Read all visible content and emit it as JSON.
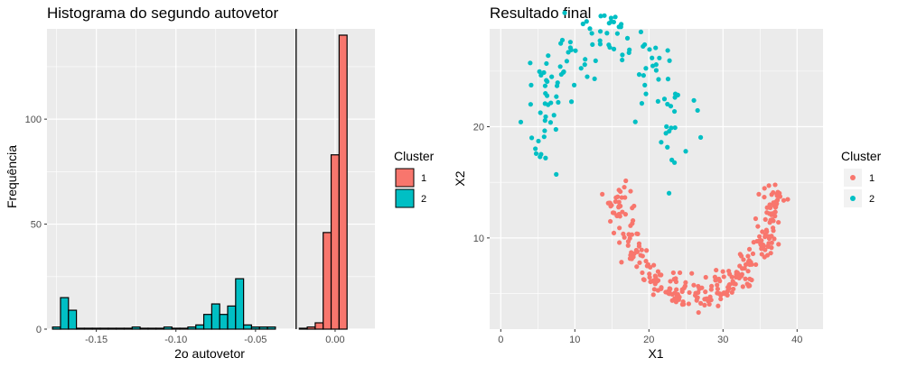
{
  "chart_data": [
    {
      "type": "bar",
      "subtype": "histogram",
      "title": "Histograma do segundo autovetor",
      "xlabel": "2o autovetor",
      "ylabel": "Frequência",
      "xlim": [
        -0.181,
        0.025
      ],
      "ylim": [
        0,
        143
      ],
      "x_ticks": [
        {
          "value": -0.15,
          "label": "-0.15"
        },
        {
          "value": -0.1,
          "label": "-0.10"
        },
        {
          "value": -0.05,
          "label": "-0.05"
        },
        {
          "value": 0.0,
          "label": "0.00"
        }
      ],
      "y_ticks": [
        {
          "value": 0,
          "label": "0"
        },
        {
          "value": 50,
          "label": "50"
        },
        {
          "value": 100,
          "label": "100"
        }
      ],
      "bin_width": 0.005,
      "vline": -0.0245,
      "grid": true,
      "legend": {
        "title": "Cluster",
        "position": "right"
      },
      "series": [
        {
          "name": "1",
          "color": "#F8766D",
          "bins": [
            {
              "x0": -0.0225,
              "x1": -0.0175,
              "count": 0
            },
            {
              "x0": -0.0175,
              "x1": -0.0125,
              "count": 1
            },
            {
              "x0": -0.0125,
              "x1": -0.0075,
              "count": 3
            },
            {
              "x0": -0.0075,
              "x1": -0.0025,
              "count": 46
            },
            {
              "x0": -0.0025,
              "x1": 0.0025,
              "count": 83
            },
            {
              "x0": 0.0025,
              "x1": 0.0075,
              "count": 140
            }
          ]
        },
        {
          "name": "2",
          "color": "#00BFC4",
          "bins": [
            {
              "x0": -0.1775,
              "x1": -0.1725,
              "count": 1
            },
            {
              "x0": -0.1725,
              "x1": -0.1675,
              "count": 15
            },
            {
              "x0": -0.1675,
              "x1": -0.1625,
              "count": 9
            },
            {
              "x0": -0.1625,
              "x1": -0.1575,
              "count": 0
            },
            {
              "x0": -0.1575,
              "x1": -0.1525,
              "count": 0
            },
            {
              "x0": -0.1525,
              "x1": -0.1475,
              "count": 0
            },
            {
              "x0": -0.1475,
              "x1": -0.1425,
              "count": 0
            },
            {
              "x0": -0.1425,
              "x1": -0.1375,
              "count": 0
            },
            {
              "x0": -0.1375,
              "x1": -0.1325,
              "count": 0
            },
            {
              "x0": -0.1325,
              "x1": -0.1275,
              "count": 0
            },
            {
              "x0": -0.1275,
              "x1": -0.1225,
              "count": 1
            },
            {
              "x0": -0.1225,
              "x1": -0.1175,
              "count": 0
            },
            {
              "x0": -0.1175,
              "x1": -0.1125,
              "count": 0
            },
            {
              "x0": -0.1125,
              "x1": -0.1075,
              "count": 0
            },
            {
              "x0": -0.1075,
              "x1": -0.1025,
              "count": 1
            },
            {
              "x0": -0.1025,
              "x1": -0.0975,
              "count": 0
            },
            {
              "x0": -0.0975,
              "x1": -0.0925,
              "count": 0
            },
            {
              "x0": -0.0925,
              "x1": -0.0875,
              "count": 1
            },
            {
              "x0": -0.0875,
              "x1": -0.0825,
              "count": 2
            },
            {
              "x0": -0.0825,
              "x1": -0.0775,
              "count": 7
            },
            {
              "x0": -0.0775,
              "x1": -0.0725,
              "count": 12
            },
            {
              "x0": -0.0725,
              "x1": -0.0675,
              "count": 7
            },
            {
              "x0": -0.0675,
              "x1": -0.0625,
              "count": 11
            },
            {
              "x0": -0.0625,
              "x1": -0.0575,
              "count": 24
            },
            {
              "x0": -0.0575,
              "x1": -0.0525,
              "count": 2
            },
            {
              "x0": -0.0525,
              "x1": -0.0475,
              "count": 1
            },
            {
              "x0": -0.0475,
              "x1": -0.0425,
              "count": 1
            },
            {
              "x0": -0.0425,
              "x1": -0.0375,
              "count": 1
            }
          ]
        }
      ]
    },
    {
      "type": "scatter",
      "title": "Resultado final",
      "xlabel": "X1",
      "ylabel": "X2",
      "xlim": [
        -1.5,
        43.5
      ],
      "ylim": [
        1.8,
        28.8
      ],
      "x_ticks": [
        {
          "value": 0,
          "label": "0"
        },
        {
          "value": 10,
          "label": "10"
        },
        {
          "value": 20,
          "label": "20"
        },
        {
          "value": 30,
          "label": "30"
        },
        {
          "value": 40,
          "label": "40"
        }
      ],
      "y_ticks": [
        {
          "value": 10,
          "label": "10"
        },
        {
          "value": 20,
          "label": "20"
        }
      ],
      "grid": true,
      "legend": {
        "title": "Cluster",
        "position": "right"
      },
      "series": [
        {
          "name": "1",
          "color": "#F8766D",
          "shape": "u-arc",
          "arc": {
            "cx": 26.5,
            "cy": 15.8,
            "rx": 10.8,
            "ry": 11.0,
            "theta_start_deg": 190,
            "theta_end_deg": 355
          },
          "n_points": 300
        },
        {
          "name": "2",
          "color": "#00BFC4",
          "shape": "n-arc",
          "arc": {
            "cx": 14.3,
            "cy": 15.0,
            "rx": 10.2,
            "ry": 12.6,
            "theta_start_deg": 8,
            "theta_end_deg": 178
          },
          "n_points": 130
        }
      ]
    }
  ]
}
